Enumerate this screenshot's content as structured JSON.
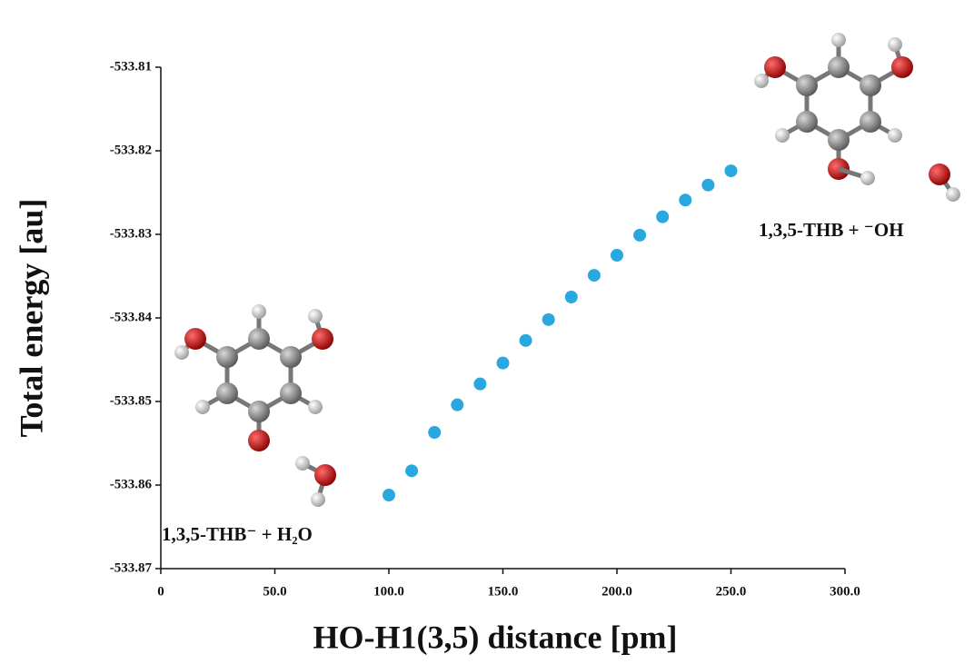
{
  "chart_data": {
    "type": "scatter",
    "xlabel": "HO-H1(3,5) distance [pm]",
    "ylabel": "Total energy [au]",
    "x": [
      100,
      110,
      120,
      130,
      140,
      150,
      160,
      170,
      180,
      190,
      200,
      210,
      220,
      230,
      240,
      250
    ],
    "series": [
      {
        "color": "#29a8e0",
        "values": [
          -533.8612,
          -533.8583,
          -533.8537,
          -533.8504,
          -533.8479,
          -533.8454,
          -533.8427,
          -533.8402,
          -533.8375,
          -533.8349,
          -533.8325,
          -533.8301,
          -533.8279,
          -533.8259,
          -533.8241,
          -533.8224
        ]
      }
    ],
    "xlim": [
      0,
      300
    ],
    "xticks": [
      0,
      {
        "value": 50,
        "label": "50.0"
      },
      {
        "value": 100,
        "label": "100.0"
      },
      {
        "value": 150,
        "label": "150.0"
      },
      {
        "value": 200,
        "label": "200.0"
      },
      {
        "value": 250,
        "label": "250.0"
      },
      {
        "value": 300,
        "label": "300.0"
      }
    ],
    "ylim": [
      -533.87,
      -533.81
    ],
    "yticks": [
      -533.87,
      -533.86,
      -533.85,
      -533.84,
      -533.83,
      -533.82,
      -533.81
    ],
    "annotations": [
      "1,3,5-THB⁻ +  H₂O",
      "1,3,5-THB  + ⁻OH"
    ]
  }
}
